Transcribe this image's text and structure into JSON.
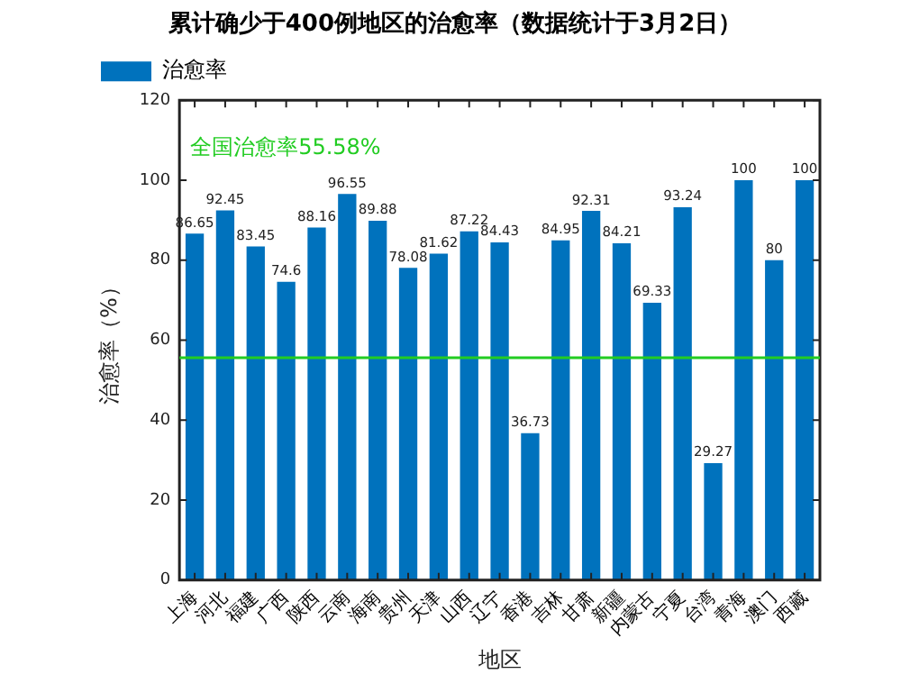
{
  "chart_data": {
    "type": "bar",
    "title": "累计确少于400例地区的治愈率（数据统计于3月2日）",
    "xlabel": "地区",
    "ylabel": "治愈率（%）",
    "categories": [
      "上海",
      "河北",
      "福建",
      "广西",
      "陕西",
      "云南",
      "海南",
      "贵州",
      "天津",
      "山西",
      "辽宁",
      "香港",
      "吉林",
      "甘肃",
      "新疆",
      "内蒙古",
      "宁夏",
      "台湾",
      "青海",
      "澳门",
      "西藏"
    ],
    "series": [
      {
        "name": "治愈率",
        "color": "#0072bd",
        "values": [
          86.65,
          92.45,
          83.45,
          74.6,
          88.16,
          96.55,
          89.88,
          78.08,
          81.62,
          87.22,
          84.43,
          36.73,
          84.95,
          92.31,
          84.21,
          69.33,
          93.24,
          29.27,
          100,
          80,
          100
        ]
      }
    ],
    "ylim": [
      0,
      120
    ],
    "yticks": [
      0,
      20,
      40,
      60,
      80,
      100,
      120
    ],
    "grid": false,
    "legend": "top left",
    "data_labels": true,
    "ref_lines": [
      {
        "axis": "y",
        "value": 55.58,
        "label": "全国治愈率55.58%",
        "color": "#22cc22"
      }
    ]
  }
}
